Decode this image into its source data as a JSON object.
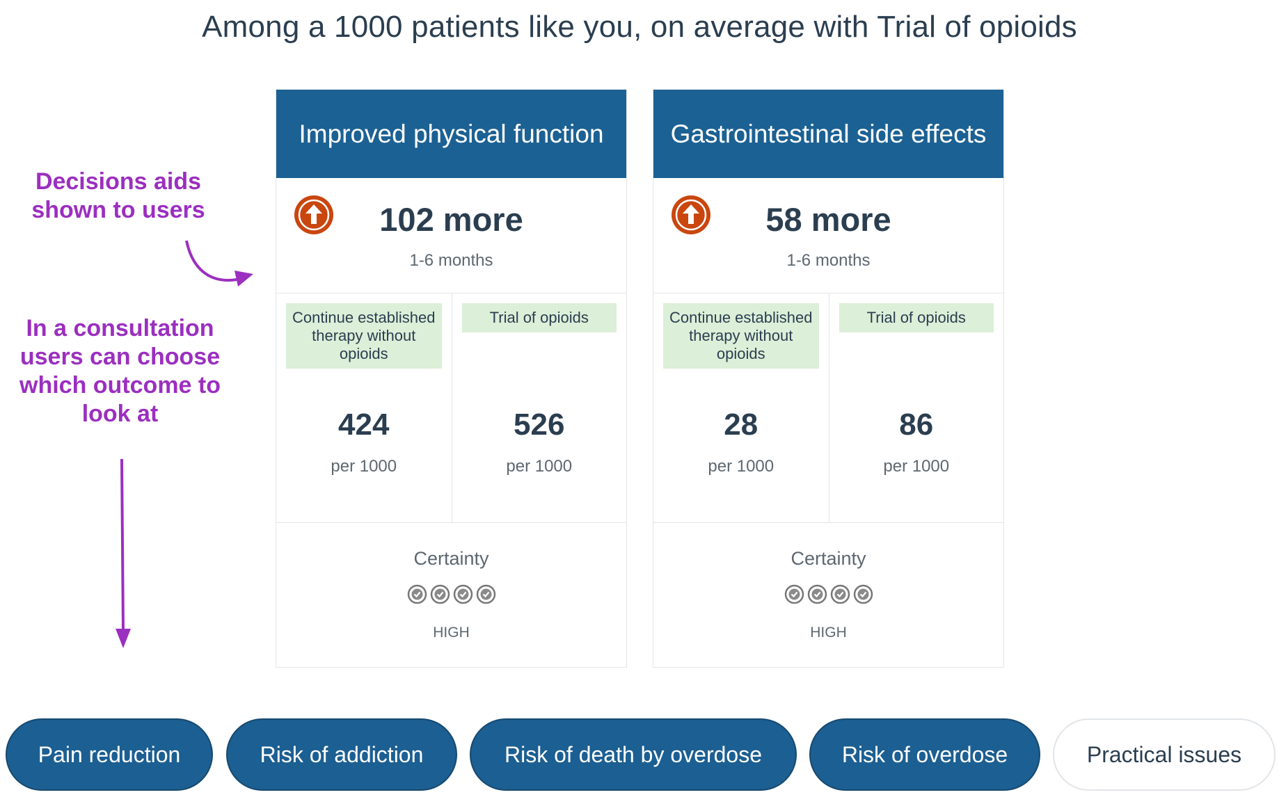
{
  "title": "Among a 1000 patients like you, on average with Trial of opioids",
  "colors": {
    "header": "#1c6193",
    "tab_active": "#1c5f92",
    "label_bg": "#dcefd8",
    "up_icon": "#c9470f",
    "annotation": "#9b2fc0"
  },
  "cards": [
    {
      "header": "Improved physical function",
      "icon": "arrow-up-circle-icon",
      "effect": "102 more",
      "period": "1-6 months",
      "comparison": [
        {
          "label": "Continue established therapy without opioids",
          "value": "424",
          "unit": "per 1000"
        },
        {
          "label": "Trial of opioids",
          "value": "526",
          "unit": "per 1000"
        }
      ],
      "certainty_label": "Certainty",
      "certainty_rating": 4,
      "certainty_level": "HIGH"
    },
    {
      "header": "Gastrointestinal side effects",
      "icon": "arrow-up-circle-icon",
      "effect": "58 more",
      "period": "1-6 months",
      "comparison": [
        {
          "label": "Continue established therapy without opioids",
          "value": "28",
          "unit": "per 1000"
        },
        {
          "label": "Trial of opioids",
          "value": "86",
          "unit": "per 1000"
        }
      ],
      "certainty_label": "Certainty",
      "certainty_rating": 4,
      "certainty_level": "HIGH"
    }
  ],
  "annotations": {
    "decision_aids": "Decisions aids shown to users",
    "consultation": "In a consultation users can choose which outcome to look at"
  },
  "tabs": [
    {
      "label": "Pain reduction",
      "active": true
    },
    {
      "label": "Risk of addiction",
      "active": true
    },
    {
      "label": "Risk of death by overdose",
      "active": true
    },
    {
      "label": "Risk of overdose",
      "active": true
    },
    {
      "label": "Practical issues",
      "active": false
    }
  ]
}
